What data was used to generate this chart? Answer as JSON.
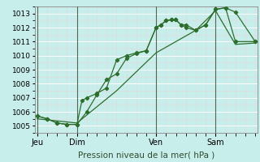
{
  "title": "Pression niveau de la mer( hPa )",
  "background_color": "#c8eeec",
  "grid_color": "#ffffff",
  "grid_minor_color": "#dde8e8",
  "line_color": "#2d6e2d",
  "y_min": 1004.5,
  "y_max": 1013.5,
  "y_ticks": [
    1005,
    1006,
    1007,
    1008,
    1009,
    1010,
    1011,
    1012,
    1013
  ],
  "x_tick_labels": [
    "Jeu",
    "Dim",
    "Ven",
    "Sam"
  ],
  "x_tick_positions": [
    0.0,
    0.182,
    0.545,
    0.818
  ],
  "x_max": 1.0,
  "vlines_x": [
    0.0,
    0.182,
    0.545,
    0.818
  ],
  "series1": {
    "x": [
      0.0,
      0.045,
      0.091,
      0.136,
      0.182,
      0.205,
      0.227,
      0.273,
      0.318,
      0.364,
      0.409,
      0.455,
      0.5,
      0.545,
      0.568,
      0.591,
      0.614,
      0.636,
      0.659,
      0.682,
      0.727,
      0.773,
      0.818,
      0.864,
      0.909,
      1.0
    ],
    "y": [
      1005.7,
      1005.5,
      1005.2,
      1005.1,
      1005.1,
      1006.8,
      1007.0,
      1007.3,
      1007.7,
      1009.7,
      1010.0,
      1010.2,
      1010.35,
      1012.0,
      1012.2,
      1012.5,
      1012.55,
      1012.55,
      1012.2,
      1012.0,
      1011.8,
      1012.2,
      1013.3,
      1013.4,
      1013.1,
      1011.0
    ]
  },
  "series2": {
    "x": [
      0.0,
      0.045,
      0.091,
      0.136,
      0.182,
      0.227,
      0.273,
      0.318,
      0.364,
      0.409,
      0.455,
      0.5,
      0.545,
      0.568,
      0.591,
      0.614,
      0.636,
      0.659,
      0.682,
      0.727,
      0.773,
      0.818,
      0.864,
      0.909,
      1.0
    ],
    "y": [
      1005.7,
      1005.5,
      1005.2,
      1005.1,
      1005.1,
      1006.0,
      1007.2,
      1008.3,
      1008.7,
      1009.8,
      1010.15,
      1010.35,
      1012.0,
      1012.2,
      1012.5,
      1012.55,
      1012.55,
      1012.2,
      1012.2,
      1011.8,
      1012.2,
      1013.3,
      1013.4,
      1011.0,
      1011.0
    ]
  },
  "series3": {
    "x": [
      0.0,
      0.182,
      0.364,
      0.545,
      0.727,
      0.818,
      0.909,
      1.0
    ],
    "y": [
      1005.5,
      1005.2,
      1007.5,
      1010.2,
      1011.8,
      1013.2,
      1010.8,
      1010.9
    ]
  }
}
